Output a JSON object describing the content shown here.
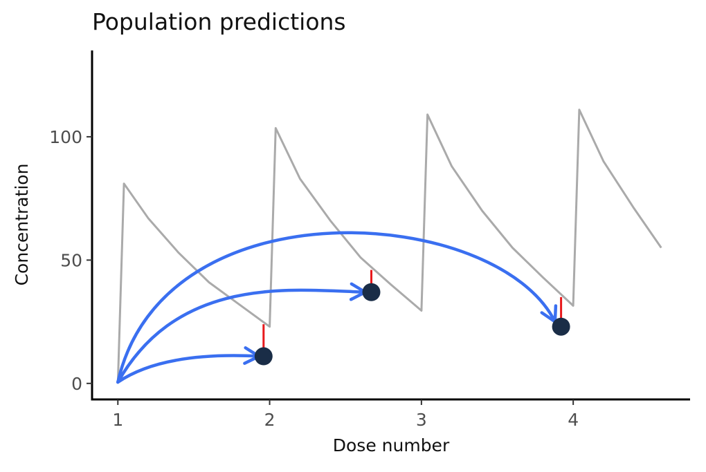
{
  "chart_data": {
    "type": "line",
    "title": "Population predictions",
    "xlabel": "Dose number",
    "ylabel": "Concentration",
    "xlim": [
      0.83,
      4.77
    ],
    "ylim": [
      -6.5,
      135
    ],
    "x_ticks": [
      1,
      2,
      3,
      4
    ],
    "y_ticks": [
      0,
      50,
      100
    ],
    "grid": false,
    "colors": {
      "prediction": "#aaaaaa",
      "arrow": "#3a6ff0",
      "residual": "#e8191c",
      "observation": "#1a2d47",
      "axis": "#000000"
    },
    "prediction_curve": {
      "name": "population prediction",
      "x": [
        1.0,
        1.04,
        1.2,
        1.4,
        1.6,
        1.8,
        2.0,
        2.04,
        2.2,
        2.4,
        2.6,
        2.8,
        3.0,
        3.04,
        3.2,
        3.4,
        3.6,
        3.8,
        4.0,
        4.04,
        4.2,
        4.4,
        4.58
      ],
      "y": [
        0,
        81,
        67,
        53,
        41,
        32,
        23,
        103.5,
        83,
        66,
        51,
        40,
        29.5,
        109,
        88,
        70,
        55,
        43,
        31.5,
        111,
        90,
        71,
        55
      ]
    },
    "observations": [
      {
        "x": 1.96,
        "y": 11,
        "predicted": 24
      },
      {
        "x": 2.67,
        "y": 37,
        "predicted": 46
      },
      {
        "x": 3.92,
        "y": 23,
        "predicted": 35
      }
    ],
    "arrows": [
      {
        "from": [
          1.0,
          0.5
        ],
        "to": [
          1.93,
          11
        ],
        "control": [
          1.3,
          13
        ]
      },
      {
        "from": [
          1.0,
          0.5
        ],
        "to": [
          2.63,
          37
        ],
        "control": [
          1.4,
          44
        ],
        "control2": [
          2.15,
          38
        ]
      },
      {
        "from": [
          1.0,
          0.5
        ],
        "to": [
          3.88,
          25
        ],
        "control": [
          1.3,
          82
        ],
        "control2": [
          3.5,
          72
        ]
      }
    ]
  }
}
